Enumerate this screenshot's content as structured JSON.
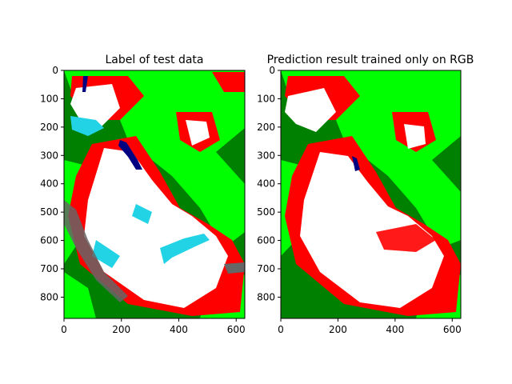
{
  "chart_data": [
    {
      "type": "heatmap",
      "title": "Label of test data",
      "xlim": [
        0,
        630
      ],
      "ylim": [
        875,
        0
      ],
      "xticks": [
        0,
        200,
        400,
        600
      ],
      "yticks": [
        0,
        100,
        200,
        300,
        400,
        500,
        600,
        700,
        800
      ],
      "xtick_labels": [
        "0",
        "200",
        "400",
        "600"
      ],
      "ytick_labels": [
        "0",
        "100",
        "200",
        "300",
        "400",
        "500",
        "600",
        "700",
        "800"
      ],
      "grid": false,
      "legend": "none",
      "colors": {
        "forest": "#008000",
        "meadow": "#00ff00",
        "rock": "#ff0000",
        "snow": "#ffffff",
        "glacier": "#22d3e6",
        "water": "#000080",
        "debris": "#666666"
      }
    },
    {
      "type": "heatmap",
      "title": "Prediction result trained only on RGB",
      "xlim": [
        0,
        630
      ],
      "ylim": [
        875,
        0
      ],
      "xticks": [
        0,
        200,
        400,
        600
      ],
      "yticks": [
        0,
        100,
        200,
        300,
        400,
        500,
        600,
        700,
        800
      ],
      "xtick_labels": [
        "0",
        "200",
        "400",
        "600"
      ],
      "ytick_labels": [
        "0",
        "100",
        "200",
        "300",
        "400",
        "500",
        "600",
        "700",
        "800"
      ],
      "grid": false,
      "legend": "none",
      "colors": {
        "forest": "#008000",
        "meadow": "#00ff00",
        "rock": "#ff0000",
        "snow": "#ffffff",
        "water": "#000080"
      }
    }
  ]
}
